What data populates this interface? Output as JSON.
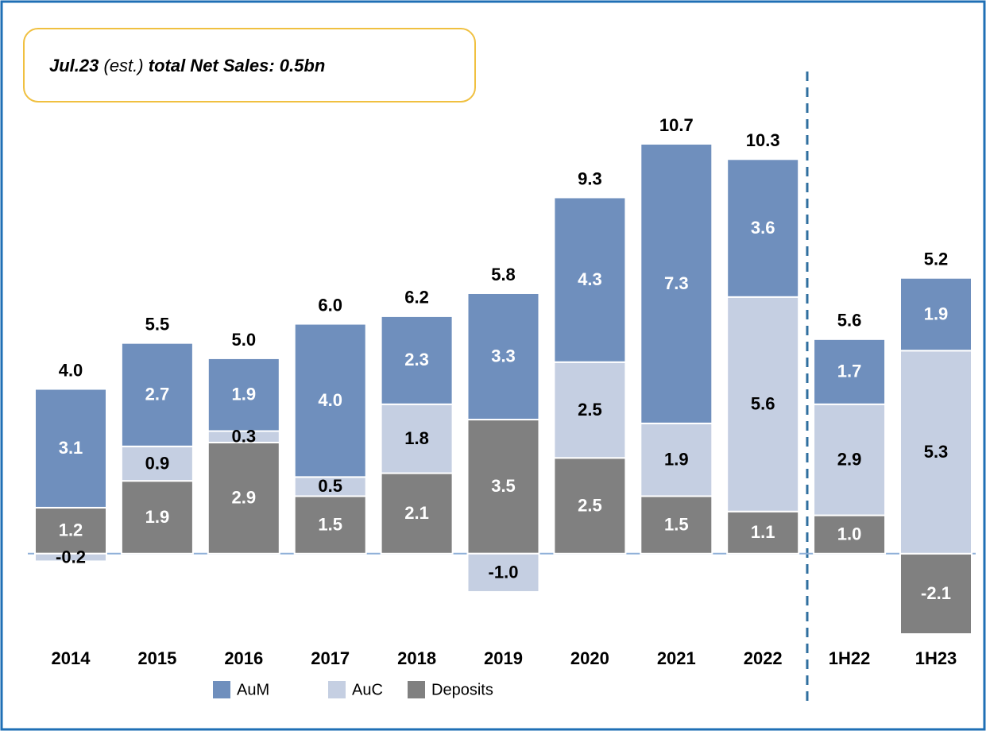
{
  "chart_data": {
    "type": "stacked_bar",
    "annotation": [
      "Jul.23",
      "(est.)",
      "total Net Sales: 0.5bn"
    ],
    "categories": [
      "2014",
      "2015",
      "2016",
      "2017",
      "2018",
      "2019",
      "2020",
      "2021",
      "2022",
      "1H22",
      "1H23"
    ],
    "series": [
      {
        "name": "Deposits",
        "color": "#808080",
        "label_color": "#ffffff",
        "values": [
          1.2,
          1.9,
          2.9,
          1.5,
          2.1,
          3.5,
          2.5,
          1.5,
          1.1,
          1.0,
          -2.1
        ],
        "value_labels": [
          "1.2",
          "1.9",
          "2.9",
          "1.5",
          "2.1",
          "3.5",
          "2.5",
          "1.5",
          "1.1",
          "1.0",
          "-2.1"
        ]
      },
      {
        "name": "AuC",
        "color": "#c5cfe2",
        "label_color": "#000000",
        "values": [
          -0.2,
          0.9,
          0.3,
          0.5,
          1.8,
          -1.0,
          2.5,
          1.9,
          5.6,
          2.9,
          5.3
        ],
        "value_labels": [
          "-0.2",
          "0.9",
          "0.3",
          "0.5",
          "1.8",
          "-1.0",
          "2.5",
          "1.9",
          "5.6",
          "2.9",
          "5.3"
        ]
      },
      {
        "name": "AuM",
        "color": "#6f8fbd",
        "label_color": "#ffffff",
        "values": [
          3.1,
          2.7,
          1.9,
          4.0,
          2.3,
          3.3,
          4.3,
          7.3,
          3.6,
          1.7,
          1.9
        ],
        "value_labels": [
          "3.1",
          "2.7",
          "1.9",
          "4.0",
          "2.3",
          "3.3",
          "4.3",
          "7.3",
          "3.6",
          "1.7",
          "1.9"
        ]
      }
    ],
    "totals": [
      4.0,
      5.5,
      5.0,
      6.0,
      6.2,
      5.8,
      9.3,
      10.7,
      10.3,
      5.6,
      5.2
    ],
    "total_labels": [
      "4.0",
      "5.5",
      "5.0",
      "6.0",
      "6.2",
      "5.8",
      "9.3",
      "10.7",
      "10.3",
      "5.6",
      "5.2"
    ],
    "legend_order": [
      2,
      1,
      0
    ]
  }
}
